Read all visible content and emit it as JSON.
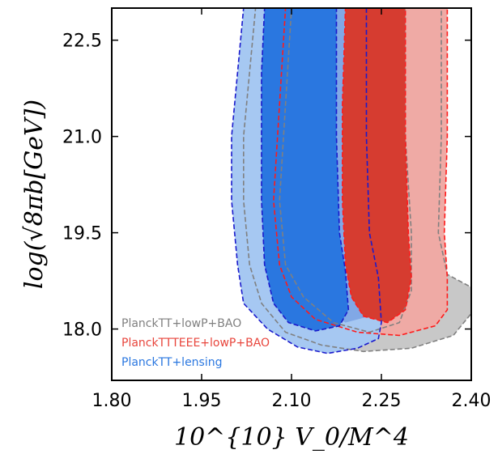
{
  "chart_data": {
    "type": "contour",
    "xlabel": "10^{10} V_0/M^4",
    "ylabel": "log(√8πb[GeV])",
    "xlim": [
      1.8,
      2.4
    ],
    "ylim": [
      17.2,
      23.0
    ],
    "xticks": [
      "1.80",
      "1.95",
      "2.10",
      "2.25",
      "2.40"
    ],
    "xtick_values": [
      1.8,
      1.95,
      2.1,
      2.25,
      2.4
    ],
    "yticks": [
      "18.0",
      "19.5",
      "21.0",
      "22.5"
    ],
    "ytick_values": [
      18.0,
      19.5,
      21.0,
      22.5
    ],
    "legend_placement": "bottom-left",
    "series": [
      {
        "name": "PlanckTT+lowP+BAO",
        "color": "#808080",
        "fill_outer": "#c8c8c8",
        "contour_95": [
          [
            2.04,
            23.0
          ],
          [
            2.03,
            22.0
          ],
          [
            2.02,
            21.0
          ],
          [
            2.02,
            20.0
          ],
          [
            2.03,
            19.0
          ],
          [
            2.05,
            18.4
          ],
          [
            2.09,
            17.95
          ],
          [
            2.15,
            17.75
          ],
          [
            2.22,
            17.65
          ],
          [
            2.3,
            17.7
          ],
          [
            2.37,
            17.9
          ],
          [
            2.405,
            18.3
          ],
          [
            2.4,
            18.65
          ],
          [
            2.36,
            18.85
          ],
          [
            2.345,
            19.5
          ],
          [
            2.35,
            21.0
          ],
          [
            2.35,
            23.0
          ]
        ],
        "contour_68": [
          [
            2.1,
            23.0
          ],
          [
            2.09,
            21.5
          ],
          [
            2.08,
            20.0
          ],
          [
            2.09,
            19.0
          ],
          [
            2.12,
            18.5
          ],
          [
            2.17,
            18.1
          ],
          [
            2.23,
            17.95
          ],
          [
            2.28,
            18.1
          ],
          [
            2.3,
            18.6
          ],
          [
            2.3,
            19.5
          ],
          [
            2.29,
            21.0
          ],
          [
            2.29,
            23.0
          ]
        ]
      },
      {
        "name": "PlanckTTTEEE+lowP+BAO",
        "color": "#ff1a1a",
        "fill_outer": "#efaaa5",
        "fill_inner": "#d63c30",
        "contour_95": [
          [
            2.09,
            23.0
          ],
          [
            2.08,
            21.5
          ],
          [
            2.07,
            20.0
          ],
          [
            2.08,
            19.0
          ],
          [
            2.1,
            18.5
          ],
          [
            2.14,
            18.15
          ],
          [
            2.21,
            17.95
          ],
          [
            2.28,
            17.9
          ],
          [
            2.34,
            18.05
          ],
          [
            2.36,
            18.3
          ],
          [
            2.36,
            18.8
          ],
          [
            2.355,
            19.5
          ],
          [
            2.36,
            21.0
          ],
          [
            2.36,
            23.0
          ]
        ],
        "contour_68": [
          [
            2.19,
            23.0
          ],
          [
            2.185,
            21.5
          ],
          [
            2.185,
            20.0
          ],
          [
            2.19,
            19.0
          ],
          [
            2.2,
            18.5
          ],
          [
            2.22,
            18.2
          ],
          [
            2.26,
            18.1
          ],
          [
            2.29,
            18.3
          ],
          [
            2.3,
            18.8
          ],
          [
            2.295,
            19.5
          ],
          [
            2.29,
            21.0
          ],
          [
            2.29,
            23.0
          ]
        ]
      },
      {
        "name": "PlanckTT+lensing",
        "color": "#1a1acc",
        "fill_outer": "#a6c8f2",
        "fill_inner": "#2a77e0",
        "contour_95": [
          [
            2.02,
            23.0
          ],
          [
            2.01,
            22.0
          ],
          [
            2.0,
            21.0
          ],
          [
            2.0,
            20.0
          ],
          [
            2.01,
            19.0
          ],
          [
            2.02,
            18.4
          ],
          [
            2.06,
            18.0
          ],
          [
            2.11,
            17.72
          ],
          [
            2.16,
            17.62
          ],
          [
            2.21,
            17.7
          ],
          [
            2.245,
            17.85
          ],
          [
            2.25,
            18.1
          ],
          [
            2.245,
            18.8
          ],
          [
            2.23,
            19.5
          ],
          [
            2.225,
            21.0
          ],
          [
            2.225,
            23.0
          ]
        ],
        "contour_68": [
          [
            2.055,
            23.0
          ],
          [
            2.05,
            22.0
          ],
          [
            2.05,
            21.0
          ],
          [
            2.05,
            20.0
          ],
          [
            2.055,
            19.0
          ],
          [
            2.07,
            18.4
          ],
          [
            2.095,
            18.1
          ],
          [
            2.14,
            17.97
          ],
          [
            2.18,
            18.05
          ],
          [
            2.195,
            18.3
          ],
          [
            2.19,
            18.9
          ],
          [
            2.18,
            19.5
          ],
          [
            2.175,
            21.0
          ],
          [
            2.175,
            23.0
          ]
        ]
      }
    ],
    "overlays": [
      {
        "name": "PlanckTT+lowP+BAO-inner-overlay",
        "color": "#3a6ec8",
        "fill": "#3d6ed0",
        "opacity": 0.35,
        "contour": [
          [
            2.12,
            23.0
          ],
          [
            2.115,
            21.5
          ],
          [
            2.11,
            20.0
          ],
          [
            2.12,
            19.0
          ],
          [
            2.14,
            18.4
          ],
          [
            2.19,
            18.1
          ],
          [
            2.23,
            18.2
          ],
          [
            2.245,
            18.8
          ],
          [
            2.24,
            19.5
          ],
          [
            2.24,
            21.0
          ],
          [
            2.24,
            23.0
          ]
        ]
      }
    ]
  }
}
